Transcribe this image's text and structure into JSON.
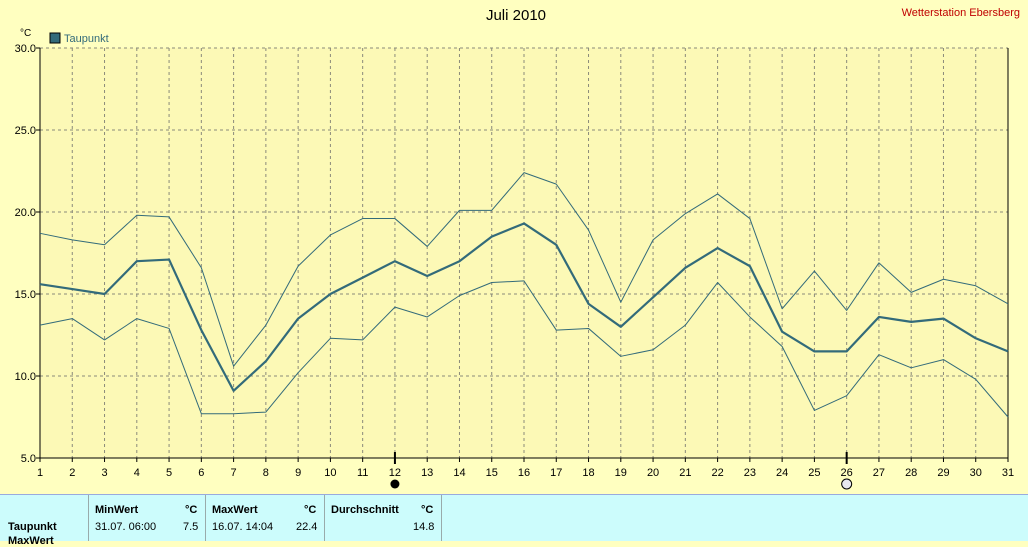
{
  "header": {
    "title": "Juli 2010",
    "station": "Wetterstation Ebersberg"
  },
  "chart_data": {
    "type": "line",
    "title": "Juli 2010",
    "ylabel": "°C",
    "ylim": [
      5,
      30
    ],
    "yticks": [
      "5.0",
      "10.0",
      "15.0",
      "20.0",
      "25.0",
      "30.0"
    ],
    "x": [
      1,
      2,
      3,
      4,
      5,
      6,
      7,
      8,
      9,
      10,
      11,
      12,
      13,
      14,
      15,
      16,
      17,
      18,
      19,
      20,
      21,
      22,
      23,
      24,
      25,
      26,
      27,
      28,
      29,
      30,
      31
    ],
    "legend": {
      "label": "Taupunkt",
      "position": "top-left"
    },
    "grid": true,
    "series": [
      {
        "name": "Taupunkt",
        "role": "mean",
        "values": [
          15.6,
          15.3,
          15.0,
          17.0,
          17.1,
          12.8,
          9.1,
          10.9,
          13.5,
          15.0,
          16.0,
          17.0,
          16.1,
          17.0,
          18.5,
          19.3,
          18.0,
          14.4,
          13.0,
          14.8,
          16.6,
          17.8,
          16.7,
          12.7,
          11.5,
          11.5,
          13.6,
          13.3,
          13.5,
          12.3,
          11.5
        ]
      },
      {
        "role": "max",
        "values": [
          18.7,
          18.3,
          18.0,
          19.8,
          19.7,
          16.6,
          10.6,
          13.1,
          16.7,
          18.6,
          19.6,
          19.6,
          17.9,
          20.1,
          20.1,
          22.4,
          21.7,
          18.9,
          14.5,
          18.3,
          19.9,
          21.1,
          19.6,
          14.1,
          16.4,
          14.0,
          16.9,
          15.1,
          15.9,
          15.5,
          14.4
        ]
      },
      {
        "role": "min",
        "values": [
          13.1,
          13.5,
          12.2,
          13.5,
          12.9,
          7.7,
          7.7,
          7.8,
          10.2,
          12.3,
          12.2,
          14.2,
          13.6,
          14.9,
          15.7,
          15.8,
          12.8,
          12.9,
          11.2,
          11.6,
          13.1,
          15.7,
          13.6,
          11.8,
          7.9,
          8.8,
          11.3,
          10.5,
          11.0,
          9.8,
          7.5
        ]
      }
    ],
    "markers": [
      {
        "day": 12,
        "kind": "new-moon"
      },
      {
        "day": 26,
        "kind": "full-moon"
      }
    ]
  },
  "summary": {
    "row_label": "Taupunkt",
    "next_row_label": "MaxWert",
    "min": {
      "header": "MinWert",
      "unit": "°C",
      "time": "31.07.  06:00",
      "value": "7.5"
    },
    "max": {
      "header": "MaxWert",
      "unit": "°C",
      "time": "16.07.  14:04",
      "value": "22.4"
    },
    "avg": {
      "header": "Durchschnitt",
      "unit": "°C",
      "value": "14.8"
    }
  },
  "colors": {
    "background": "#ffffc0",
    "plot": "#fcf9b6",
    "line": "#336b7a",
    "title_station": "#c00000",
    "panel": "#ccfcfc"
  }
}
